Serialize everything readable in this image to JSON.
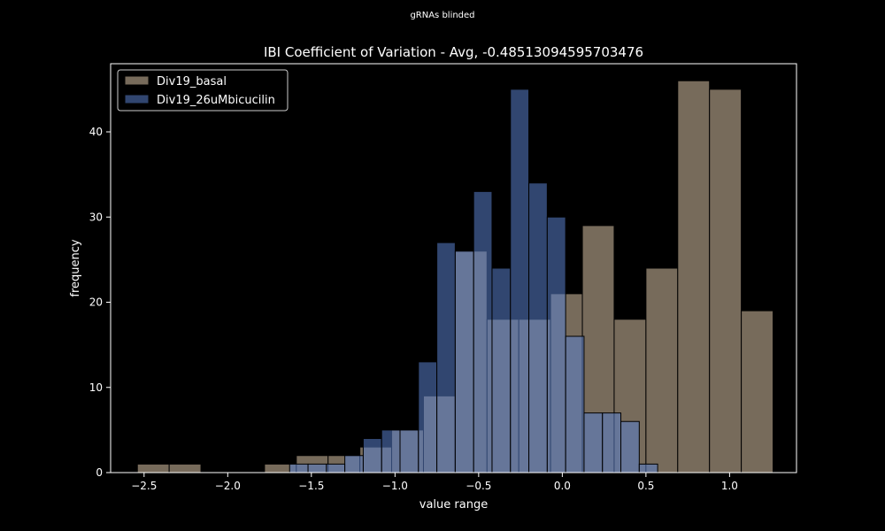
{
  "suptitle": "gRNAs blinded",
  "chart_data": {
    "type": "histogram",
    "title": "IBI Coefficient of Variation - Avg, -0.48513094595703476",
    "xlabel": "value range",
    "ylabel": "frequency",
    "xlim": [
      -2.7,
      1.4
    ],
    "ylim": [
      0,
      48
    ],
    "xticks": [
      -2.5,
      -2.0,
      -1.5,
      -1.0,
      -0.5,
      0.0,
      0.5,
      1.0
    ],
    "xtick_labels": [
      "−2.5",
      "−2.0",
      "−1.5",
      "−1.0",
      "−0.5",
      "0.0",
      "0.5",
      "1.0"
    ],
    "yticks": [
      0,
      10,
      20,
      30,
      40
    ],
    "ytick_labels": [
      "0",
      "10",
      "20",
      "30",
      "40"
    ],
    "legend_position": "top-left",
    "grid": false,
    "colors": {
      "background": "#000000",
      "basal": "#d9c2a6",
      "bicucilin": "#5a7fcc",
      "edge": "#000000",
      "text": "#ffffff"
    },
    "series": [
      {
        "name": "Div19_basal",
        "bin_edges": [
          -2.54,
          -2.35,
          -2.16,
          -1.97,
          -1.78,
          -1.59,
          -1.4,
          -1.21,
          -1.02,
          -0.83,
          -0.64,
          -0.45,
          -0.26,
          -0.07,
          0.12,
          0.31,
          0.5,
          0.69,
          0.88,
          1.07,
          1.26
        ],
        "counts": [
          1,
          1,
          0,
          0,
          1,
          2,
          2,
          3,
          5,
          9,
          26,
          18,
          18,
          21,
          29,
          18,
          24,
          46,
          45,
          19
        ]
      },
      {
        "name": "Div19_26uMbicucilin",
        "bin_edges": [
          -1.63,
          -1.52,
          -1.41,
          -1.3,
          -1.19,
          -1.08,
          -0.97,
          -0.86,
          -0.75,
          -0.64,
          -0.53,
          -0.42,
          -0.31,
          -0.2,
          -0.09,
          0.02,
          0.13,
          0.24,
          0.35,
          0.46,
          0.57
        ],
        "counts": [
          1,
          1,
          1,
          2,
          4,
          5,
          5,
          13,
          27,
          26,
          33,
          24,
          45,
          34,
          30,
          16,
          7,
          7,
          6,
          1
        ]
      }
    ]
  }
}
